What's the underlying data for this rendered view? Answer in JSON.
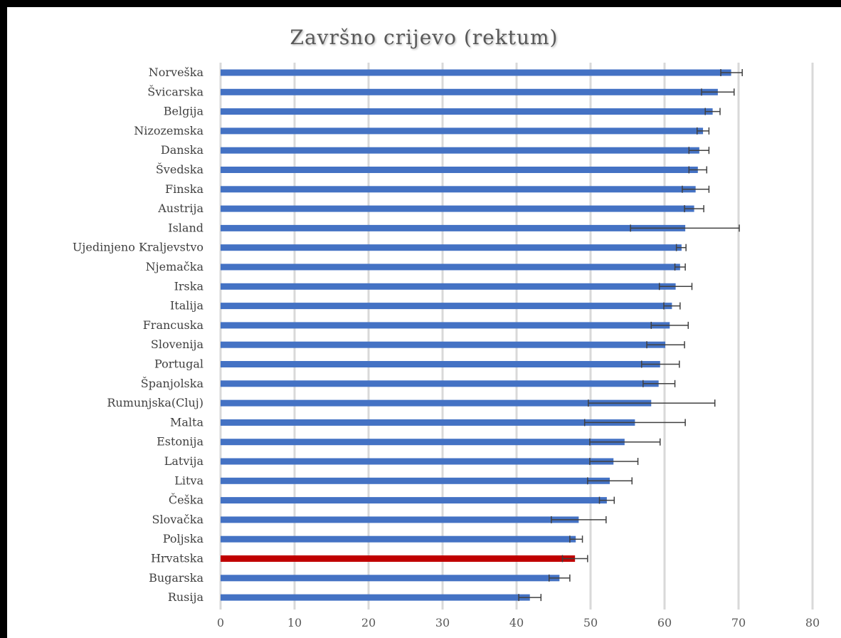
{
  "chart_data": {
    "type": "bar",
    "orientation": "horizontal",
    "title": "Završno crijevo (rektum)",
    "xlabel": "",
    "ylabel": "",
    "xlim": [
      0,
      80
    ],
    "xticks": [
      0,
      10,
      20,
      30,
      40,
      50,
      60,
      70,
      80
    ],
    "grid": true,
    "legend": "none",
    "colors": {
      "default_bar": "#4472c4",
      "highlight_bar": "#c00000",
      "error_bar": "#404040",
      "gridline": "#d9d9d9"
    },
    "highlight": "Hrvatska",
    "categories": [
      "Norveška",
      "Švicarska",
      "Belgija",
      "Nizozemska",
      "Danska",
      "Švedska",
      "Finska",
      "Austrija",
      "Island",
      "Ujedinjeno Kraljevstvo",
      "Njemačka",
      "Irska",
      "Italija",
      "Francuska",
      "Slovenija",
      "Portugal",
      "Španjolska",
      "Rumunjska(Cluj)",
      "Malta",
      "Estonija",
      "Latvija",
      "Litva",
      "Češka",
      "Slovačka",
      "Poljska",
      "Hrvatska",
      "Bugarska",
      "Rusija"
    ],
    "values": [
      69.0,
      67.2,
      66.5,
      65.2,
      64.7,
      64.5,
      64.2,
      64.0,
      62.8,
      62.3,
      62.1,
      61.5,
      61.0,
      60.7,
      60.1,
      59.4,
      59.2,
      58.2,
      56.0,
      54.6,
      53.1,
      52.6,
      52.2,
      48.4,
      48.0,
      47.9,
      45.8,
      41.8
    ],
    "error_low": [
      67.6,
      65.0,
      65.5,
      64.4,
      63.3,
      63.3,
      62.4,
      62.7,
      55.4,
      61.6,
      61.4,
      59.3,
      59.9,
      58.2,
      57.6,
      56.9,
      57.1,
      49.7,
      49.2,
      49.9,
      49.9,
      49.6,
      51.2,
      44.7,
      47.2,
      46.2,
      44.4,
      40.3
    ],
    "error_high": [
      70.5,
      69.4,
      67.5,
      66.0,
      66.0,
      65.7,
      66.0,
      65.3,
      70.1,
      62.9,
      62.8,
      63.7,
      62.1,
      63.2,
      62.7,
      62.0,
      61.4,
      66.8,
      62.8,
      59.4,
      56.4,
      55.6,
      53.2,
      52.1,
      48.9,
      49.6,
      47.2,
      43.3
    ]
  }
}
